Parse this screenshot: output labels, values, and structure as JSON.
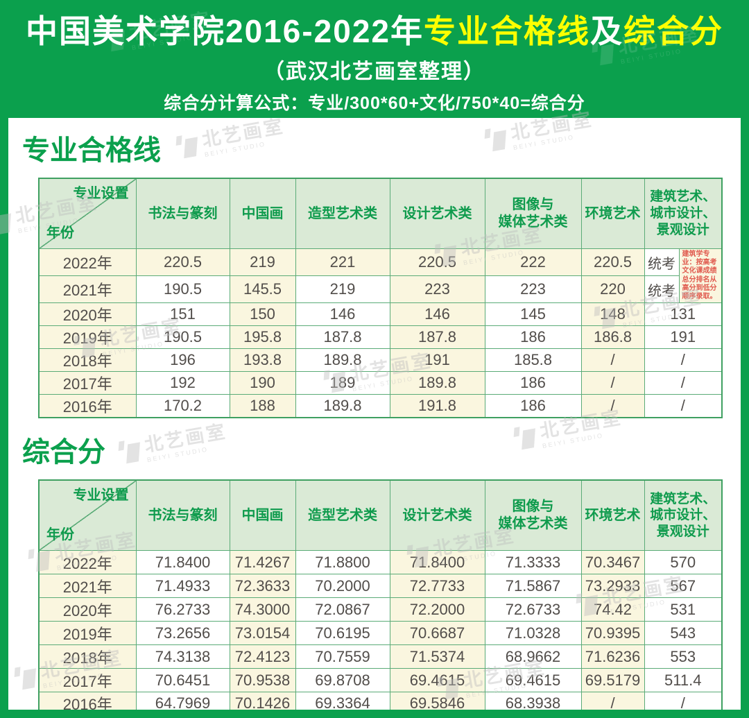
{
  "banner": {
    "title_part1": "中国美术学院2016-2022年",
    "title_part2": "专业合格线",
    "title_part3": "及",
    "title_part4": "综合分",
    "subtitle": "（武汉北艺画室整理）",
    "formula": "综合分计算公式：专业/300*60+文化/750*40=综合分"
  },
  "watermark": {
    "name": "北艺画室",
    "sub": "BEIYI STUDIO"
  },
  "colors": {
    "brand_green": "#0ba04d",
    "accent_yellow": "#fdff00",
    "header_cell_bg": "#daead6",
    "cream_cell_bg": "#faf6df",
    "table_border_green": "#5aab77",
    "note_red": "#e05a4e"
  },
  "table_header": {
    "corner_top": "专业设置",
    "corner_bottom": "年份",
    "columns": [
      "书法与篆刻",
      "中国画",
      "造型艺术类",
      "设计艺术类",
      "图像与\n媒体艺术类",
      "环境艺术",
      "建筑艺术、\n城市设计、\n景观设计"
    ]
  },
  "section1": {
    "heading": "专业合格线"
  },
  "table1": {
    "note": "建筑学专业：按高考文化课成绩总分排名从高分到低分顺序录取。",
    "rows": [
      {
        "year": "2022年",
        "values": [
          "220.5",
          "219",
          "221",
          "220.5",
          "222",
          "220.5",
          "统考"
        ]
      },
      {
        "year": "2021年",
        "values": [
          "190.5",
          "145.5",
          "219",
          "223",
          "223",
          "220",
          "统考"
        ]
      },
      {
        "year": "2020年",
        "values": [
          "151",
          "150",
          "146",
          "146",
          "145",
          "148",
          "131"
        ]
      },
      {
        "year": "2019年",
        "values": [
          "190.5",
          "195.8",
          "187.8",
          "187.8",
          "186",
          "186.8",
          "191"
        ]
      },
      {
        "year": "2018年",
        "values": [
          "196",
          "193.8",
          "189.8",
          "191",
          "185.8",
          "/",
          "/"
        ]
      },
      {
        "year": "2017年",
        "values": [
          "192",
          "190",
          "189",
          "189.8",
          "186",
          "/",
          "/"
        ]
      },
      {
        "year": "2016年",
        "values": [
          "170.2",
          "188",
          "189.8",
          "191.8",
          "186",
          "/",
          "/"
        ]
      }
    ]
  },
  "section2": {
    "heading": "综合分"
  },
  "table2": {
    "rows": [
      {
        "year": "2022年",
        "values": [
          "71.8400",
          "71.4267",
          "71.8800",
          "71.8400",
          "71.3333",
          "70.3467",
          "570"
        ]
      },
      {
        "year": "2021年",
        "values": [
          "71.4933",
          "72.3633",
          "70.2000",
          "72.7733",
          "71.5867",
          "73.2933",
          "567"
        ]
      },
      {
        "year": "2020年",
        "values": [
          "76.2733",
          "74.3000",
          "72.0867",
          "72.2000",
          "72.6733",
          "74.42",
          "531"
        ]
      },
      {
        "year": "2019年",
        "values": [
          "73.2656",
          "73.0154",
          "70.6195",
          "70.6687",
          "71.0328",
          "70.9395",
          "543"
        ]
      },
      {
        "year": "2018年",
        "values": [
          "74.3138",
          "72.4123",
          "70.7559",
          "71.5374",
          "68.9662",
          "71.6236",
          "553"
        ]
      },
      {
        "year": "2017年",
        "values": [
          "70.6451",
          "70.9538",
          "69.8708",
          "69.4615",
          "69.4615",
          "69.5179",
          "511.4"
        ]
      },
      {
        "year": "2016年",
        "values": [
          "64.7969",
          "70.1426",
          "69.3364",
          "69.5846",
          "68.3938",
          "/",
          "/"
        ]
      }
    ]
  }
}
